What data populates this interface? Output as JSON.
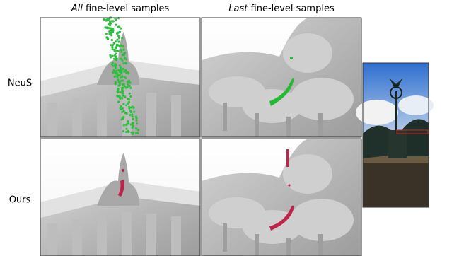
{
  "columns": [
    {
      "emphasis": "All",
      "text": "fine-level samples"
    },
    {
      "emphasis": "Last",
      "text": "fine-level samples"
    }
  ],
  "rows": [
    {
      "label": "NeuS"
    },
    {
      "label": "Ours"
    }
  ]
}
